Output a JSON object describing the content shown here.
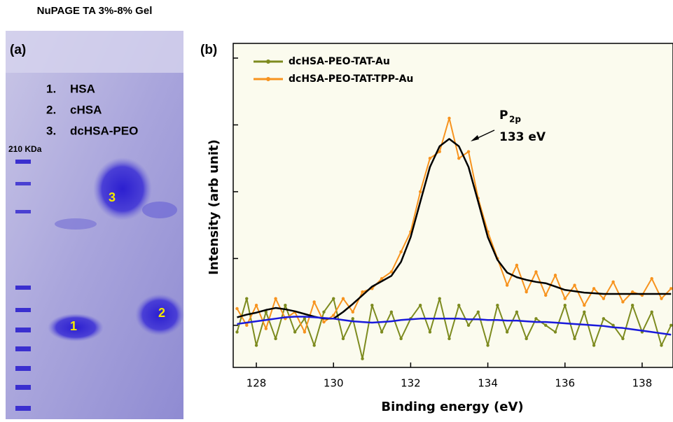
{
  "gel": {
    "title": "NuPAGE TA 3%-8% Gel",
    "panel_label": "(a)",
    "legend": [
      {
        "number": "1.",
        "label": "HSA"
      },
      {
        "number": "2.",
        "label": "cHSA"
      },
      {
        "number": "3.",
        "label": "dcHSA-PEO"
      }
    ],
    "marker_label": "210 KDa",
    "band_labels": [
      "1",
      "2",
      "3"
    ]
  },
  "chart_data": {
    "type": "line",
    "panel_label": "(b)",
    "x_label": "Binding energy (eV)",
    "y_label": "Intensity (arb unit)",
    "annotation_symbol": "P",
    "annotation_subscript": "2p",
    "annotation_energy": "133 eV",
    "xlim": [
      127.4,
      138.8
    ],
    "xticks": [
      128,
      130,
      132,
      134,
      136,
      138
    ],
    "ylim": [
      0.37,
      5.22
    ],
    "yticks": [
      1,
      2,
      3,
      4,
      5
    ],
    "x": [
      127.5,
      127.75,
      128,
      128.25,
      128.5,
      128.75,
      129,
      129.25,
      129.5,
      129.75,
      130,
      130.25,
      130.5,
      130.75,
      131,
      131.25,
      131.5,
      131.75,
      132,
      132.25,
      132.5,
      132.75,
      133,
      133.25,
      133.5,
      133.75,
      134,
      134.25,
      134.5,
      134.75,
      135,
      135.25,
      135.5,
      135.75,
      136,
      136.25,
      136.5,
      136.75,
      137,
      137.25,
      137.5,
      137.75,
      138,
      138.25,
      138.5,
      138.75
    ],
    "series": [
      {
        "name": "dcHSA-PEO-TAT-Au",
        "color": "#7d8b1f",
        "values": [
          0.9,
          1.4,
          0.7,
          1.2,
          0.8,
          1.3,
          0.9,
          1.1,
          0.7,
          1.2,
          1.4,
          0.8,
          1.1,
          0.5,
          1.3,
          0.9,
          1.2,
          0.8,
          1.1,
          1.3,
          0.9,
          1.4,
          0.8,
          1.3,
          1.0,
          1.2,
          0.7,
          1.3,
          0.9,
          1.2,
          0.8,
          1.1,
          1.0,
          0.9,
          1.3,
          0.8,
          1.2,
          0.7,
          1.1,
          1.0,
          0.8,
          1.3,
          0.9,
          1.2,
          0.7,
          1.0
        ]
      },
      {
        "name": "dcHSA-PEO-TAT-TPP-Au",
        "color": "#f7931e",
        "values": [
          1.25,
          1.0,
          1.3,
          0.95,
          1.4,
          1.1,
          1.2,
          0.9,
          1.35,
          1.05,
          1.15,
          1.4,
          1.2,
          1.5,
          1.55,
          1.7,
          1.8,
          2.1,
          2.4,
          3.0,
          3.5,
          3.6,
          4.1,
          3.5,
          3.6,
          2.9,
          2.4,
          2.0,
          1.6,
          1.9,
          1.5,
          1.8,
          1.45,
          1.75,
          1.4,
          1.6,
          1.3,
          1.55,
          1.4,
          1.65,
          1.35,
          1.5,
          1.45,
          1.7,
          1.4,
          1.55
        ]
      },
      {
        "color": "#000000",
        "values": [
          1.12,
          1.16,
          1.19,
          1.23,
          1.26,
          1.24,
          1.21,
          1.17,
          1.13,
          1.1,
          1.1,
          1.2,
          1.32,
          1.45,
          1.58,
          1.66,
          1.74,
          1.95,
          2.32,
          2.85,
          3.37,
          3.68,
          3.79,
          3.68,
          3.37,
          2.85,
          2.32,
          1.98,
          1.79,
          1.72,
          1.68,
          1.65,
          1.63,
          1.58,
          1.53,
          1.51,
          1.49,
          1.48,
          1.47,
          1.47,
          1.47,
          1.47,
          1.47,
          1.47,
          1.47,
          1.47
        ]
      },
      {
        "color": "#1a1adb",
        "values": [
          1.02,
          1.04,
          1.06,
          1.08,
          1.1,
          1.12,
          1.13,
          1.13,
          1.12,
          1.11,
          1.1,
          1.08,
          1.06,
          1.05,
          1.04,
          1.05,
          1.06,
          1.08,
          1.09,
          1.1,
          1.1,
          1.1,
          1.1,
          1.1,
          1.09,
          1.09,
          1.08,
          1.08,
          1.07,
          1.07,
          1.06,
          1.05,
          1.05,
          1.04,
          1.03,
          1.02,
          1.01,
          1.0,
          0.99,
          0.97,
          0.96,
          0.94,
          0.92,
          0.9,
          0.88,
          0.86
        ]
      }
    ]
  }
}
